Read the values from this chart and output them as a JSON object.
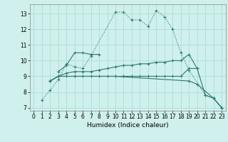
{
  "xlabel": "Humidex (Indice chaleur)",
  "bg_color": "#cff0ec",
  "grid_color": "#aaddda",
  "line_color": "#2d7a6a",
  "xlim": [
    -0.5,
    23.5
  ],
  "ylim": [
    6.8,
    13.6
  ],
  "yticks": [
    7,
    8,
    9,
    10,
    11,
    12,
    13
  ],
  "xticks": [
    0,
    1,
    2,
    3,
    4,
    5,
    6,
    7,
    8,
    9,
    10,
    11,
    12,
    13,
    14,
    15,
    16,
    17,
    18,
    19,
    20,
    21,
    22,
    23
  ],
  "series": [
    {
      "x": [
        1,
        2,
        3,
        4,
        5,
        6,
        7,
        10,
        11,
        12,
        13,
        14,
        15,
        16,
        17,
        18,
        19,
        21,
        22,
        23
      ],
      "y": [
        7.5,
        8.1,
        8.8,
        9.8,
        9.6,
        9.5,
        10.3,
        13.1,
        13.1,
        12.6,
        12.6,
        12.2,
        13.2,
        12.8,
        12.0,
        10.5,
        9.4,
        7.8,
        7.6,
        7.0
      ],
      "dotted": true
    },
    {
      "x": [
        3,
        4,
        5,
        6,
        7,
        8
      ],
      "y": [
        9.3,
        9.7,
        10.5,
        10.5,
        10.4,
        10.4
      ],
      "dotted": false
    },
    {
      "x": [
        2,
        3,
        4,
        5,
        6,
        7,
        8,
        9,
        10,
        11,
        12,
        13,
        14,
        15,
        16,
        17,
        18,
        19,
        20
      ],
      "y": [
        8.7,
        9.0,
        9.2,
        9.3,
        9.3,
        9.3,
        9.4,
        9.5,
        9.6,
        9.7,
        9.7,
        9.8,
        9.8,
        9.9,
        9.9,
        10.0,
        10.0,
        10.4,
        9.5
      ],
      "dotted": false
    },
    {
      "x": [
        2,
        3,
        4,
        5,
        6,
        7,
        8,
        9,
        10,
        11,
        12,
        13,
        14,
        15,
        16,
        17,
        18,
        19,
        20,
        21,
        22,
        23
      ],
      "y": [
        8.7,
        9.0,
        9.0,
        9.0,
        9.0,
        9.0,
        9.0,
        9.0,
        9.0,
        9.0,
        9.0,
        9.0,
        9.0,
        9.0,
        9.0,
        9.0,
        9.0,
        9.5,
        9.5,
        7.8,
        7.6,
        7.0
      ],
      "dotted": false
    },
    {
      "x": [
        2,
        3,
        5,
        10,
        19,
        20,
        22,
        23
      ],
      "y": [
        8.7,
        9.0,
        9.0,
        9.0,
        8.7,
        8.5,
        7.6,
        7.0
      ],
      "dotted": false
    }
  ]
}
